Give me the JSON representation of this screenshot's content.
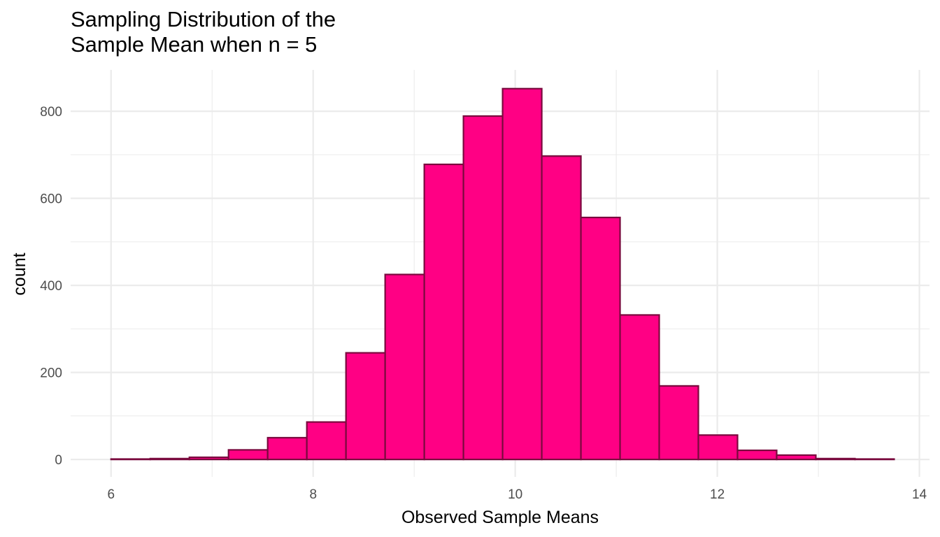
{
  "chart_data": {
    "type": "bar",
    "title_lines": [
      "Sampling Distribution of the",
      "Sample Mean when n = 5"
    ],
    "xlabel": "Observed Sample Means",
    "ylabel": "count",
    "xlim": [
      5.6,
      14.1
    ],
    "ylim": [
      -40,
      895
    ],
    "x_ticks": [
      6,
      8,
      10,
      12,
      14
    ],
    "y_ticks": [
      0,
      200,
      400,
      600,
      800
    ],
    "grid": true,
    "bin_width": 0.3875,
    "bins": [
      {
        "x0": 6.0,
        "x1": 6.3875,
        "count": 1
      },
      {
        "x0": 6.3875,
        "x1": 6.775,
        "count": 2
      },
      {
        "x0": 6.775,
        "x1": 7.1625,
        "count": 5
      },
      {
        "x0": 7.1625,
        "x1": 7.55,
        "count": 22
      },
      {
        "x0": 7.55,
        "x1": 7.9375,
        "count": 50
      },
      {
        "x0": 7.9375,
        "x1": 8.325,
        "count": 86
      },
      {
        "x0": 8.325,
        "x1": 8.7125,
        "count": 245
      },
      {
        "x0": 8.7125,
        "x1": 9.1,
        "count": 425
      },
      {
        "x0": 9.1,
        "x1": 9.4875,
        "count": 678
      },
      {
        "x0": 9.4875,
        "x1": 9.875,
        "count": 789
      },
      {
        "x0": 9.875,
        "x1": 10.2625,
        "count": 852
      },
      {
        "x0": 10.2625,
        "x1": 10.65,
        "count": 697
      },
      {
        "x0": 10.65,
        "x1": 11.0375,
        "count": 556
      },
      {
        "x0": 11.0375,
        "x1": 11.425,
        "count": 332
      },
      {
        "x0": 11.425,
        "x1": 11.8125,
        "count": 169
      },
      {
        "x0": 11.8125,
        "x1": 12.2,
        "count": 56
      },
      {
        "x0": 12.2,
        "x1": 12.5875,
        "count": 21
      },
      {
        "x0": 12.5875,
        "x1": 12.975,
        "count": 10
      },
      {
        "x0": 12.975,
        "x1": 13.3625,
        "count": 2
      },
      {
        "x0": 13.3625,
        "x1": 13.75,
        "count": 1
      }
    ],
    "colors": {
      "fill": "#ff0084",
      "stroke": "#7a0a3e",
      "grid": "#ebebeb"
    }
  }
}
